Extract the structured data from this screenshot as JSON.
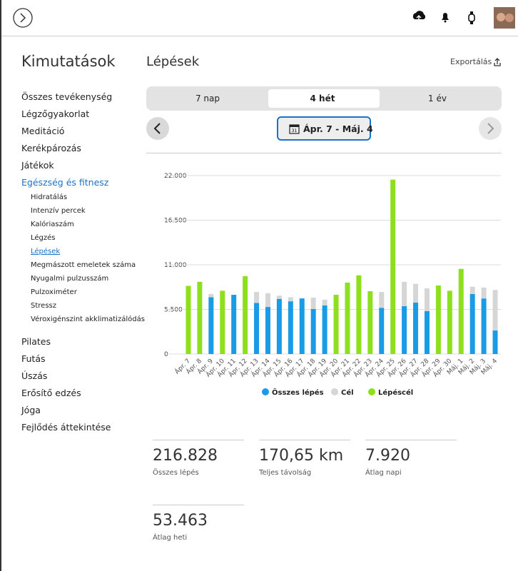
{
  "sidebar": {
    "title": "Kimutatások",
    "items": [
      "Összes tevékenység",
      "Légzőgyakorlat",
      "Meditáció",
      "Kerékpározás",
      "Játékok",
      "Egészség és fitnesz"
    ],
    "subitems": [
      "Hidratálás",
      "Intenzív percek",
      "Kalóriaszám",
      "Légzés",
      "Lépések",
      "Megmászott emeletek száma",
      "Nyugalmi pulzusszám",
      "Pulzoximéter",
      "Stressz",
      "Véroxigénszint akklimatizálódás"
    ],
    "more_items": [
      "Pilates",
      "Futás",
      "Úszás",
      "Erősítő edzés",
      "Jóga",
      "Fejlődés áttekintése"
    ]
  },
  "page": {
    "title": "Lépések",
    "export": "Exportálás",
    "tabs": [
      "7 nap",
      "4 hét",
      "1 év"
    ],
    "date_range": "Ápr. 7 - Máj. 4"
  },
  "chart_data": {
    "type": "bar",
    "stacked": true,
    "categories": [
      "Ápr. 7",
      "Ápr. 8",
      "Ápr. 9",
      "Ápr. 10",
      "Ápr. 11",
      "Ápr. 12",
      "Ápr. 13",
      "Ápr. 14",
      "Ápr. 15",
      "Ápr. 16",
      "Ápr. 17",
      "Ápr. 18",
      "Ápr. 19",
      "Ápr. 20",
      "Ápr. 21",
      "Ápr. 22",
      "Ápr. 23",
      "Ápr. 24",
      "Ápr. 25",
      "Ápr. 26",
      "Ápr. 27",
      "Ápr. 28",
      "Ápr. 29",
      "Ápr. 30",
      "Máj. 1",
      "Máj. 2",
      "Máj. 3",
      "Máj. 4"
    ],
    "series": [
      {
        "name": "Összes lépés",
        "color": "#1a9be6",
        "values": [
          null,
          null,
          7000,
          null,
          7300,
          null,
          6300,
          5800,
          6800,
          6500,
          6850,
          5550,
          6000,
          null,
          null,
          null,
          null,
          5700,
          null,
          5900,
          6350,
          5300,
          null,
          null,
          null,
          7400,
          6850,
          2900
        ]
      },
      {
        "name": "Cél",
        "color": "#d6d6d6",
        "values": [
          null,
          null,
          400,
          null,
          null,
          null,
          1350,
          1700,
          400,
          500,
          null,
          1400,
          700,
          null,
          null,
          null,
          null,
          1950,
          null,
          3000,
          2300,
          2800,
          null,
          null,
          null,
          900,
          1350,
          5000
        ]
      },
      {
        "name": "Lépéscél",
        "color": "#8ee01e",
        "values": [
          8400,
          8900,
          null,
          7800,
          null,
          9600,
          null,
          null,
          null,
          null,
          null,
          null,
          null,
          7300,
          8800,
          9700,
          7750,
          null,
          21500,
          null,
          null,
          null,
          8450,
          7800,
          10500,
          null,
          null,
          null
        ]
      }
    ],
    "ylim": [
      0,
      22000
    ],
    "yticks": [
      0,
      {
        "value": 5500,
        "label": "5.500"
      },
      {
        "value": 11000,
        "label": "11.000"
      },
      {
        "value": 16500,
        "label": "16.500"
      },
      {
        "value": 22000,
        "label": "22.000"
      }
    ],
    "grid": true
  },
  "stats": [
    {
      "value": "216.828",
      "label": "Összes lépés"
    },
    {
      "value": "170,65 km",
      "label": "Teljes távolság"
    },
    {
      "value": "7.920",
      "label": "Átlag napi"
    },
    {
      "value": "53.463",
      "label": "Átlag heti"
    }
  ]
}
